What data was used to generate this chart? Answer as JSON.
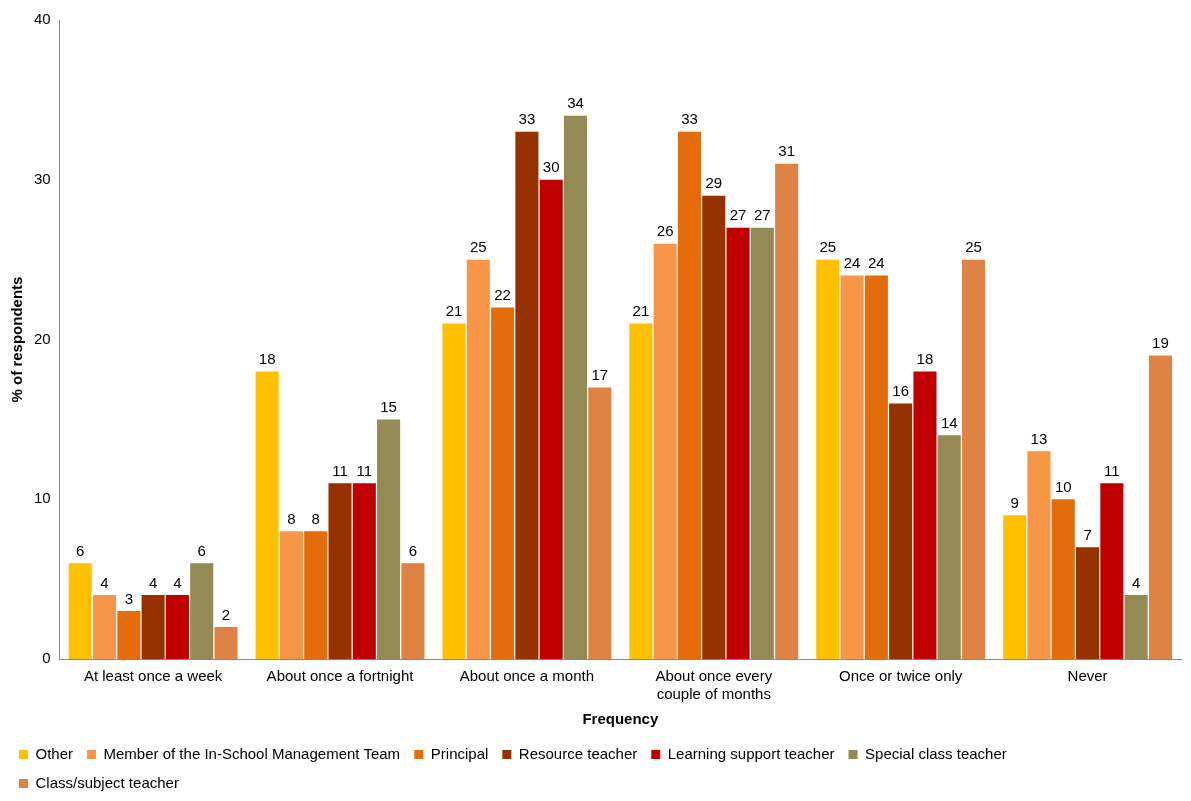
{
  "chart_data": {
    "type": "bar",
    "xlabel": "Frequency",
    "ylabel": "% of respondents",
    "categories": [
      "At least once a week",
      "About once a fortnight",
      "About once a month",
      "About once every couple of months",
      "Once or twice only",
      "Never"
    ],
    "series": [
      {
        "name": "Other",
        "color": "#ffc000",
        "values": [
          6,
          18,
          21,
          21,
          25,
          9
        ]
      },
      {
        "name": "Member of the In-School Management Team",
        "color": "#f79646",
        "values": [
          4,
          8,
          25,
          26,
          24,
          13
        ]
      },
      {
        "name": "Principal",
        "color": "#e46c0a",
        "values": [
          3,
          8,
          22,
          33,
          24,
          10
        ]
      },
      {
        "name": "Resource teacher",
        "color": "#953200",
        "values": [
          4,
          11,
          33,
          29,
          16,
          7
        ]
      },
      {
        "name": "Learning support teacher",
        "color": "#c00000",
        "values": [
          4,
          11,
          30,
          27,
          18,
          11
        ]
      },
      {
        "name": "Special class teacher",
        "color": "#948a54",
        "values": [
          6,
          15,
          34,
          27,
          14,
          4
        ]
      },
      {
        "name": "Class/subject teacher",
        "color": "#de8344",
        "values": [
          2,
          6,
          17,
          31,
          25,
          19
        ]
      }
    ],
    "ylim": [
      0,
      40
    ],
    "yticks": [
      0,
      10,
      20,
      30,
      40
    ],
    "grid": false,
    "legend": "bottom",
    "data_labels": true
  }
}
